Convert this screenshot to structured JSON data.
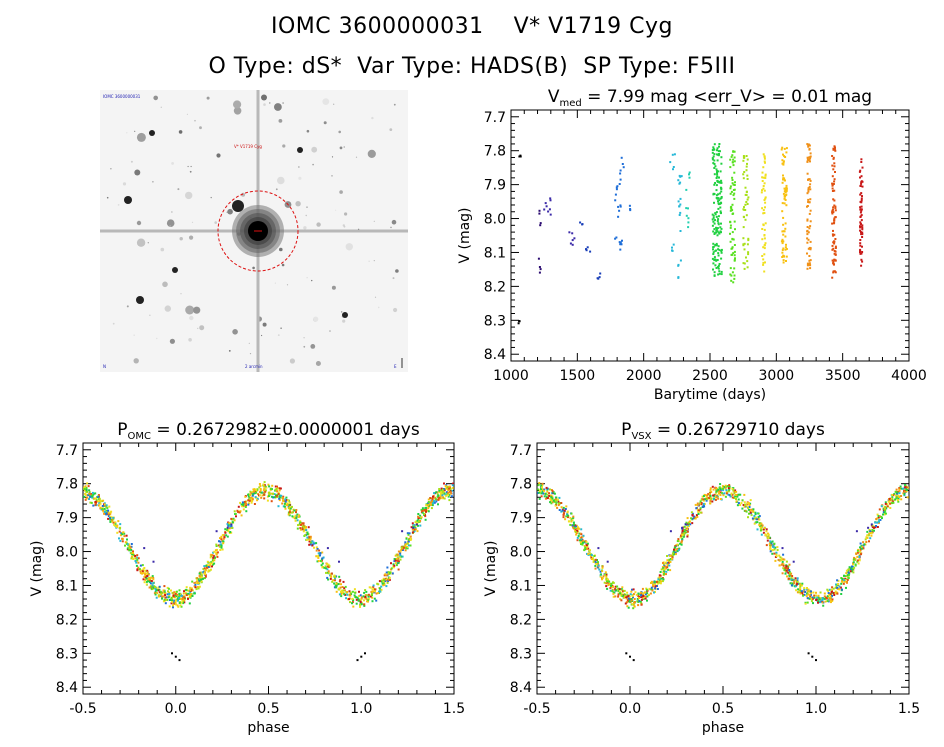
{
  "header": {
    "line1_id": "IOMC 3600000031",
    "line1_name": "V* V1719 Cyg",
    "o_type": "O Type: dS*",
    "var_type": "Var Type: HADS(B)",
    "sp_type": "SP Type: F5III"
  },
  "finder_image": {
    "labels": {
      "top_left": "IOMC 3600000031",
      "target": "V* V1719 Cyg",
      "bottom_left": "N",
      "bottom_center": "2 arcmin",
      "bottom_right": "E"
    },
    "circle_color": "#dd1111"
  },
  "colors": {
    "sequence": [
      "#000000",
      "#2a0a70",
      "#3b2aa8",
      "#1a3fb8",
      "#1e6ed8",
      "#26b8d8",
      "#22d0b0",
      "#20d040",
      "#58e020",
      "#a8e018",
      "#f0e020",
      "#f8c010",
      "#f09018",
      "#e05010",
      "#c81818"
    ]
  },
  "chart_data": [
    {
      "type": "scatter",
      "id": "lightcurve",
      "title_main": "V",
      "title_sub": "med",
      "title_rest": " = 7.99 mag <err_V> = 0.01 mag",
      "xlabel": "Barytime (days)",
      "ylabel": "V (mag)",
      "xlim": [
        1000,
        4000
      ],
      "ylim": [
        8.42,
        7.68
      ],
      "xticks": [
        1000,
        1500,
        2000,
        2500,
        3000,
        3500,
        4000
      ],
      "yticks": [
        7.7,
        7.8,
        7.9,
        8.0,
        8.1,
        8.2,
        8.3,
        8.4
      ],
      "tick_labels_x": [
        "1000",
        "1500",
        "2000",
        "2500",
        "3000",
        "3500",
        "4000"
      ],
      "tick_labels_y": [
        "7.7",
        "7.8",
        "7.9",
        "8.0",
        "8.1",
        "8.2",
        "8.3",
        "8.4"
      ],
      "clusters": [
        {
          "x": [
            1060,
            1075
          ],
          "ymin": 7.81,
          "ymax": 7.83,
          "n": 3,
          "color": 0
        },
        {
          "x": [
            1050,
            1075
          ],
          "ymin": 8.29,
          "ymax": 8.32,
          "n": 3,
          "color": 0
        },
        {
          "x": [
            1210,
            1225
          ],
          "ymin": 7.97,
          "ymax": 8.03,
          "n": 4,
          "color": 1
        },
        {
          "x": [
            1210,
            1225
          ],
          "ymin": 8.1,
          "ymax": 8.16,
          "n": 4,
          "color": 1
        },
        {
          "x": [
            1240,
            1300
          ],
          "ymin": 7.94,
          "ymax": 7.99,
          "n": 8,
          "color": 2
        },
        {
          "x": [
            1430,
            1480
          ],
          "ymin": 8.02,
          "ymax": 8.08,
          "n": 6,
          "color": 2
        },
        {
          "x": [
            1500,
            1540
          ],
          "ymin": 8.01,
          "ymax": 8.02,
          "n": 3,
          "color": 3
        },
        {
          "x": [
            1560,
            1600
          ],
          "ymin": 8.07,
          "ymax": 8.1,
          "n": 4,
          "color": 3
        },
        {
          "x": [
            1650,
            1680
          ],
          "ymin": 8.16,
          "ymax": 8.19,
          "n": 4,
          "color": 3
        },
        {
          "x": [
            1780,
            1830
          ],
          "ymin": 7.85,
          "ymax": 8.0,
          "n": 14,
          "color": 4
        },
        {
          "x": [
            1780,
            1840
          ],
          "ymin": 8.05,
          "ymax": 8.12,
          "n": 8,
          "color": 4
        },
        {
          "x": [
            1830,
            1850
          ],
          "ymin": 7.82,
          "ymax": 7.86,
          "n": 3,
          "color": 4
        },
        {
          "x": [
            1880,
            1900
          ],
          "ymin": 7.95,
          "ymax": 7.98,
          "n": 3,
          "color": 4
        },
        {
          "x": [
            2200,
            2240
          ],
          "ymin": 7.81,
          "ymax": 7.86,
          "n": 5,
          "color": 5
        },
        {
          "x": [
            2210,
            2240
          ],
          "ymin": 8.07,
          "ymax": 8.1,
          "n": 4,
          "color": 5
        },
        {
          "x": [
            2260,
            2290
          ],
          "ymin": 7.84,
          "ymax": 8.05,
          "n": 14,
          "color": 5
        },
        {
          "x": [
            2260,
            2290
          ],
          "ymin": 8.12,
          "ymax": 8.18,
          "n": 5,
          "color": 5
        },
        {
          "x": [
            2320,
            2350
          ],
          "ymin": 7.84,
          "ymax": 8.06,
          "n": 10,
          "color": 6
        },
        {
          "x": [
            2520,
            2590
          ],
          "ymin": 7.78,
          "ymax": 8.18,
          "n": 160,
          "color": 7
        },
        {
          "x": [
            2650,
            2690
          ],
          "ymin": 7.8,
          "ymax": 8.2,
          "n": 70,
          "color": 8
        },
        {
          "x": [
            2750,
            2790
          ],
          "ymin": 7.81,
          "ymax": 8.15,
          "n": 50,
          "color": 9
        },
        {
          "x": [
            2890,
            2920
          ],
          "ymin": 7.81,
          "ymax": 8.17,
          "n": 50,
          "color": 10
        },
        {
          "x": [
            3040,
            3080
          ],
          "ymin": 7.79,
          "ymax": 8.16,
          "n": 70,
          "color": 11
        },
        {
          "x": [
            3230,
            3260
          ],
          "ymin": 7.78,
          "ymax": 8.15,
          "n": 70,
          "color": 12
        },
        {
          "x": [
            3420,
            3450
          ],
          "ymin": 7.78,
          "ymax": 8.18,
          "n": 80,
          "color": 13
        },
        {
          "x": [
            3630,
            3650
          ],
          "ymin": 7.82,
          "ymax": 8.14,
          "n": 60,
          "color": 14
        }
      ]
    },
    {
      "type": "scatter",
      "id": "phase_omc",
      "title_main": "P",
      "title_sub": "OMC",
      "title_rest": " = 0.2672982±0.0000001 days",
      "xlabel": "phase",
      "ylabel": "V (mag)",
      "xlim": [
        -0.5,
        1.5
      ],
      "ylim": [
        8.42,
        7.68
      ],
      "xticks": [
        -0.5,
        0.0,
        0.5,
        1.0,
        1.5
      ],
      "yticks": [
        7.7,
        7.8,
        7.9,
        8.0,
        8.1,
        8.2,
        8.3,
        8.4
      ],
      "tick_labels_x": [
        "-0.5",
        "0.0",
        "0.5",
        "1.0",
        "1.5"
      ],
      "tick_labels_y": [
        "7.7",
        "7.8",
        "7.9",
        "8.0",
        "8.1",
        "8.2",
        "8.3",
        "8.4"
      ],
      "curve": {
        "max_phase": 0.48,
        "min_phase": 0.0,
        "bright": 7.82,
        "faint": 8.14,
        "scatter": 0.035
      },
      "outliers": [
        {
          "phase": 0.0,
          "v": 8.31,
          "color": 0
        },
        {
          "phase": 0.02,
          "v": 8.32,
          "color": 0
        },
        {
          "phase": -0.02,
          "v": 8.3,
          "color": 0
        },
        {
          "phase": 1.0,
          "v": 8.31,
          "color": 0
        },
        {
          "phase": 1.02,
          "v": 8.3,
          "color": 0
        },
        {
          "phase": 0.98,
          "v": 8.32,
          "color": 0
        }
      ]
    },
    {
      "type": "scatter",
      "id": "phase_vsx",
      "title_main": "P",
      "title_sub": "VSX",
      "title_rest": " = 0.26729710 days",
      "xlabel": "phase",
      "ylabel": "V (mag)",
      "xlim": [
        -0.5,
        1.5
      ],
      "ylim": [
        8.42,
        7.68
      ],
      "xticks": [
        -0.5,
        0.0,
        0.5,
        1.0,
        1.5
      ],
      "yticks": [
        7.7,
        7.8,
        7.9,
        8.0,
        8.1,
        8.2,
        8.3,
        8.4
      ],
      "tick_labels_x": [
        "-0.5",
        "0.0",
        "0.5",
        "1.0",
        "1.5"
      ],
      "tick_labels_y": [
        "7.7",
        "7.8",
        "7.9",
        "8.0",
        "8.1",
        "8.2",
        "8.3",
        "8.4"
      ],
      "curve": {
        "max_phase": 0.5,
        "min_phase": 0.02,
        "bright": 7.82,
        "faint": 8.14,
        "scatter": 0.035
      },
      "outliers": [
        {
          "phase": 0.0,
          "v": 8.31,
          "color": 0
        },
        {
          "phase": 0.02,
          "v": 8.32,
          "color": 0
        },
        {
          "phase": -0.02,
          "v": 8.3,
          "color": 0
        },
        {
          "phase": 0.98,
          "v": 8.31,
          "color": 0
        },
        {
          "phase": 1.0,
          "v": 8.32,
          "color": 0
        },
        {
          "phase": 0.96,
          "v": 8.3,
          "color": 0
        }
      ]
    }
  ]
}
